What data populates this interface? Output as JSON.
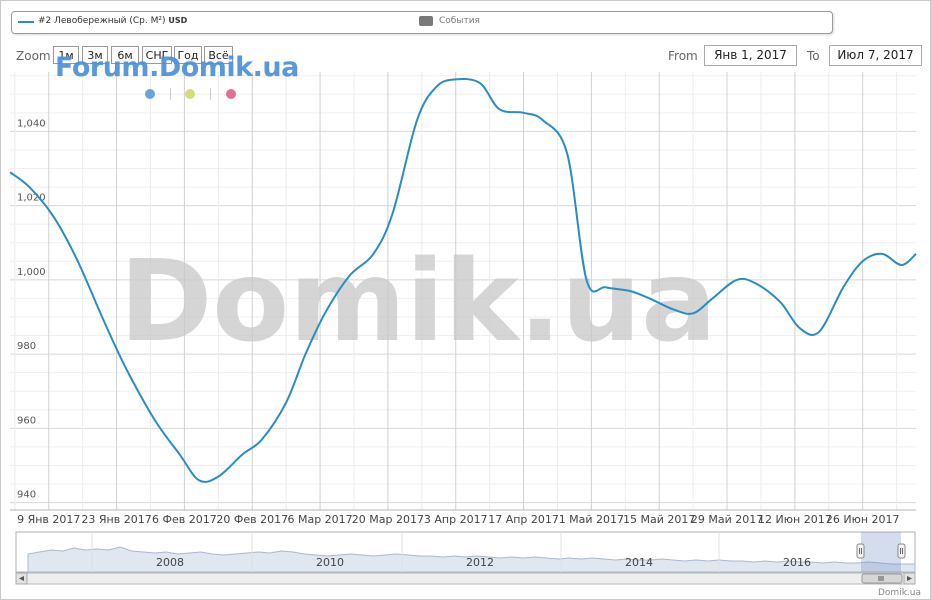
{
  "legend": {
    "series_name": "#2 Левобережный (Ср. M²)",
    "series_unit": "USD",
    "events_label": "События",
    "series_color": "#2b8cc4",
    "events_color": "#7a7a7a"
  },
  "zoom": {
    "label": "Zoom",
    "buttons": [
      "1м",
      "3м",
      "6м",
      "СНГ",
      "Год",
      "Всё"
    ]
  },
  "range": {
    "from_label": "From",
    "from_value": "Янв 1, 2017",
    "to_label": "To",
    "to_value": "Июл 7, 2017"
  },
  "watermark": {
    "forum_text": "Forum.Domik.ua",
    "main_text": "Domik.ua",
    "dot_colors": [
      "#6fa0d6",
      "#d6dc7a",
      "#e0708e"
    ]
  },
  "credit": "Domik.ua",
  "chart_data": {
    "type": "line",
    "y_ticks": [
      "940",
      "960",
      "980",
      "1,000",
      "1,020",
      "1,040"
    ],
    "ylim": [
      938,
      1056
    ],
    "x_tick_labels": [
      "9 Янв 2017",
      "23 Янв 2017",
      "6 Фев 2017",
      "20 Фев 2017",
      "6 Мар 2017",
      "20 Мар 2017",
      "3 Апр 2017",
      "17 Апр 2017",
      "1 Май 2017",
      "15 Май 2017",
      "29 Май 2017",
      "12 Июн 2017",
      "26 Июн 2017"
    ],
    "xlim": [
      "2017-01-01",
      "2017-07-07"
    ],
    "grid": true,
    "series": [
      {
        "name": "#2 Левобережный (Ср. M²)",
        "color": "#2b8cc4",
        "points": [
          [
            "2017-01-01",
            1029
          ],
          [
            "2017-01-05",
            1025
          ],
          [
            "2017-01-10",
            1017
          ],
          [
            "2017-01-15",
            1005
          ],
          [
            "2017-01-20",
            990
          ],
          [
            "2017-01-25",
            976
          ],
          [
            "2017-01-31",
            962
          ],
          [
            "2017-02-05",
            953
          ],
          [
            "2017-02-09",
            946
          ],
          [
            "2017-02-13",
            947
          ],
          [
            "2017-02-18",
            953
          ],
          [
            "2017-02-22",
            957
          ],
          [
            "2017-02-27",
            967
          ],
          [
            "2017-03-03",
            980
          ],
          [
            "2017-03-07",
            991
          ],
          [
            "2017-03-12",
            1001
          ],
          [
            "2017-03-17",
            1007
          ],
          [
            "2017-03-21",
            1018
          ],
          [
            "2017-03-26",
            1043
          ],
          [
            "2017-03-30",
            1052
          ],
          [
            "2017-04-03",
            1054
          ],
          [
            "2017-04-08",
            1053
          ],
          [
            "2017-04-12",
            1046
          ],
          [
            "2017-04-17",
            1045
          ],
          [
            "2017-04-21",
            1043
          ],
          [
            "2017-04-26",
            1034
          ],
          [
            "2017-04-30",
            1000
          ],
          [
            "2017-05-04",
            998
          ],
          [
            "2017-05-09",
            997
          ],
          [
            "2017-05-13",
            995
          ],
          [
            "2017-05-18",
            992
          ],
          [
            "2017-05-22",
            991
          ],
          [
            "2017-05-26",
            995
          ],
          [
            "2017-05-31",
            1000
          ],
          [
            "2017-06-04",
            999
          ],
          [
            "2017-06-09",
            994
          ],
          [
            "2017-06-13",
            987
          ],
          [
            "2017-06-17",
            986
          ],
          [
            "2017-06-22",
            998
          ],
          [
            "2017-06-26",
            1005
          ],
          [
            "2017-06-30",
            1007
          ],
          [
            "2017-07-04",
            1004
          ],
          [
            "2017-07-07",
            1007
          ]
        ]
      }
    ],
    "navigator": {
      "year_labels": [
        "2008",
        "2010",
        "2012",
        "2014",
        "2016"
      ]
    }
  }
}
